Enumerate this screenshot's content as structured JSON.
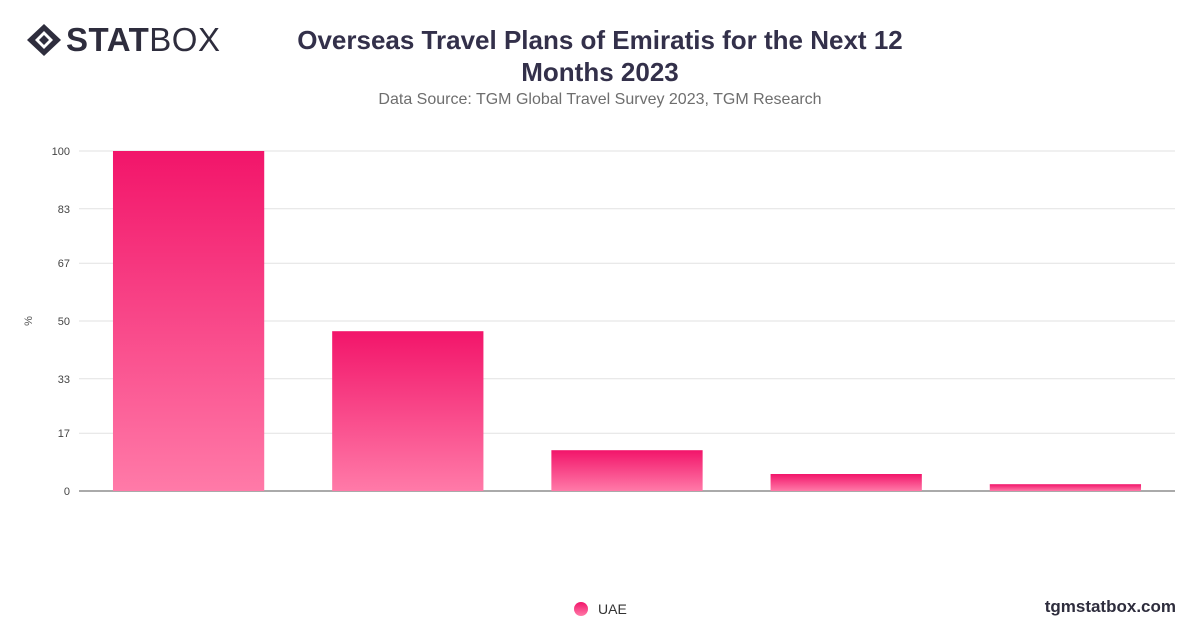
{
  "brand": {
    "logo_bold": "STAT",
    "logo_light": "BOX",
    "site": "tgmstatbox.com"
  },
  "title": "Overseas Travel Plans of Emiratis for the Next 12 Months 2023",
  "subtitle": "Data Source: TGM Global Travel Survey 2023, TGM Research",
  "chart_data": {
    "type": "bar",
    "title": "Overseas Travel Plans of Emiratis for the Next 12 Months 2023",
    "ylabel": "%",
    "ylim": [
      0,
      100
    ],
    "yticks": [
      0,
      17,
      33,
      50,
      67,
      83,
      100
    ],
    "grid": true,
    "legend_position": "bottom",
    "series": [
      {
        "name": "UAE",
        "values": [
          100,
          47,
          12,
          5,
          2
        ]
      }
    ]
  },
  "colors": {
    "bar_top": "#f2156a",
    "bar_bottom": "#ff7aa8",
    "grid": "#e2e2e2",
    "axis": "#555555"
  }
}
